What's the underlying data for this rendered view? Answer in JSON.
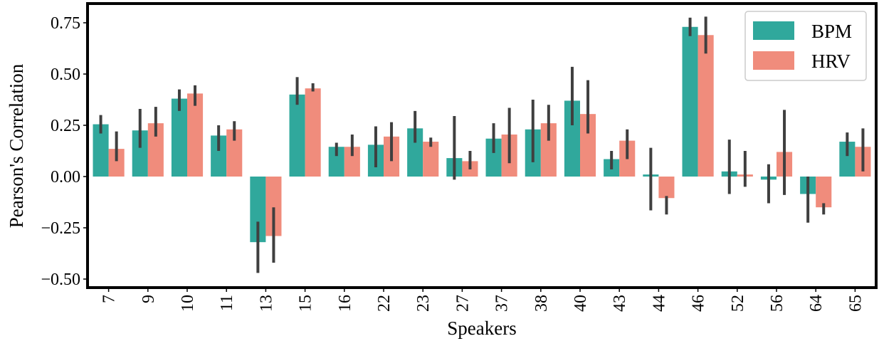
{
  "chart_data": {
    "type": "bar",
    "xlabel": "Speakers",
    "ylabel": "Pearson's Correlation",
    "categories": [
      "7",
      "9",
      "10",
      "11",
      "13",
      "15",
      "16",
      "22",
      "23",
      "27",
      "37",
      "38",
      "40",
      "43",
      "44",
      "46",
      "52",
      "56",
      "64",
      "65"
    ],
    "ylim": [
      -0.52,
      0.84
    ],
    "yticks": [
      0.75,
      0.5,
      0.25,
      0.0,
      -0.25,
      -0.5
    ],
    "ytick_labels": [
      "0.75",
      "0.50",
      "0.25",
      "0.00",
      "−0.25",
      "−0.50"
    ],
    "grid": false,
    "legend_position": "top-right",
    "series": [
      {
        "name": "BPM",
        "color": "#30a89c",
        "values": [
          0.255,
          0.225,
          0.38,
          0.2,
          -0.32,
          0.4,
          0.145,
          0.155,
          0.235,
          0.09,
          0.185,
          0.23,
          0.37,
          0.085,
          0.01,
          0.73,
          0.025,
          -0.015,
          -0.085,
          0.17
        ],
        "err_low": [
          0.21,
          0.14,
          0.32,
          0.125,
          -0.47,
          0.35,
          0.1,
          0.045,
          0.165,
          -0.015,
          0.115,
          0.07,
          0.25,
          0.035,
          -0.165,
          0.685,
          -0.085,
          -0.13,
          -0.225,
          0.1
        ],
        "err_high": [
          0.3,
          0.33,
          0.425,
          0.25,
          -0.22,
          0.485,
          0.165,
          0.245,
          0.32,
          0.295,
          0.26,
          0.375,
          0.535,
          0.125,
          0.14,
          0.775,
          0.18,
          0.06,
          0.0,
          0.215
        ]
      },
      {
        "name": "HRV",
        "color": "#f08c7c",
        "values": [
          0.135,
          0.26,
          0.405,
          0.23,
          -0.29,
          0.43,
          0.145,
          0.195,
          0.17,
          0.075,
          0.205,
          0.26,
          0.305,
          0.175,
          -0.105,
          0.69,
          0.01,
          0.12,
          -0.15,
          0.145
        ],
        "err_low": [
          0.075,
          0.195,
          0.345,
          0.175,
          -0.42,
          0.415,
          0.1,
          0.075,
          0.145,
          0.035,
          0.065,
          0.175,
          0.21,
          0.085,
          -0.185,
          0.6,
          -0.05,
          -0.09,
          -0.185,
          0.025
        ],
        "err_high": [
          0.22,
          0.34,
          0.445,
          0.27,
          -0.15,
          0.455,
          0.205,
          0.265,
          0.19,
          0.125,
          0.335,
          0.35,
          0.47,
          0.23,
          -0.095,
          0.78,
          0.125,
          0.325,
          -0.13,
          0.235
        ]
      }
    ]
  }
}
